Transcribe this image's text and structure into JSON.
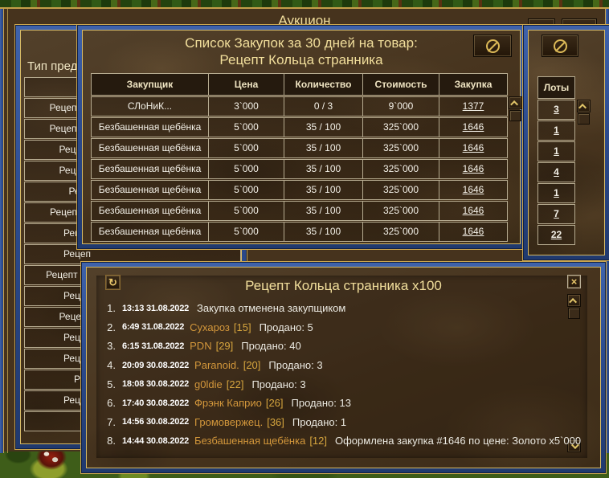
{
  "colors": {
    "frame_blue": "#2c4b8e",
    "frame_gold": "#d6ba66",
    "title_gold": "#f2df9c",
    "name_gold": "#d3973b",
    "cell_border": "#b6ab90"
  },
  "icons": {
    "cancel": "circle-slash",
    "refresh": "circular-arrow",
    "close": "x",
    "scroll_up": "chevron-up",
    "scroll_down": "chevron-down",
    "treasury": "gold-pile"
  },
  "auction_window": {
    "title": "Аукцион"
  },
  "sidebar": {
    "title": "Тип предм",
    "items": [
      "",
      "Рецепт П",
      "Рецепт П",
      "Рецепт",
      "Рецепт",
      "Реце",
      "Рецепт Д",
      "Рецеп",
      "Рецеп",
      "Рецепт Ку",
      "Рецеп",
      "Рецепт",
      "Рецеп",
      "Рецеп",
      "Рец",
      "Рецеп",
      ""
    ]
  },
  "purchase_window": {
    "title_line1": "Список Закупок за 30 дней на товар:",
    "title_line2": "Рецепт Кольца странника",
    "table": {
      "headers": [
        "Закупщик",
        "Цена",
        "Количество",
        "Стоимость",
        "Закупка"
      ],
      "rows": [
        {
          "buyer": "СЛоНиК...",
          "price": "3`000",
          "quantity": "0 / 3",
          "total": "9`000",
          "purchase_id": "1377"
        },
        {
          "buyer": "Безбашенная щебёнка",
          "price": "5`000",
          "quantity": "35 / 100",
          "total": "325`000",
          "purchase_id": "1646"
        },
        {
          "buyer": "Безбашенная щебёнка",
          "price": "5`000",
          "quantity": "35 / 100",
          "total": "325`000",
          "purchase_id": "1646"
        },
        {
          "buyer": "Безбашенная щебёнка",
          "price": "5`000",
          "quantity": "35 / 100",
          "total": "325`000",
          "purchase_id": "1646"
        },
        {
          "buyer": "Безбашенная щебёнка",
          "price": "5`000",
          "quantity": "35 / 100",
          "total": "325`000",
          "purchase_id": "1646"
        },
        {
          "buyer": "Безбашенная щебёнка",
          "price": "5`000",
          "quantity": "35 / 100",
          "total": "325`000",
          "purchase_id": "1646"
        },
        {
          "buyer": "Безбашенная щебёнка",
          "price": "5`000",
          "quantity": "35 / 100",
          "total": "325`000",
          "purchase_id": "1646"
        }
      ]
    }
  },
  "lots_panel": {
    "header": "Лоты",
    "values": [
      "3",
      "1",
      "1",
      "4",
      "1",
      "7",
      "22"
    ]
  },
  "log_window": {
    "title": "Рецепт Кольца странника x100",
    "entries": [
      {
        "num": "1.",
        "time": "13:13 31.08.2022",
        "name": "",
        "level": "",
        "text": "Закупка отменена закупщиком"
      },
      {
        "num": "2.",
        "time": "6:49 31.08.2022",
        "name": "Сухароз",
        "level": "[15]",
        "text": "Продано: 5"
      },
      {
        "num": "3.",
        "time": "6:15 31.08.2022",
        "name": "PDN",
        "level": "[29]",
        "text": "Продано: 40"
      },
      {
        "num": "4.",
        "time": "20:09 30.08.2022",
        "name": "Paranoid.",
        "level": "[20]",
        "text": "Продано: 3"
      },
      {
        "num": "5.",
        "time": "18:08 30.08.2022",
        "name": "g0ldie",
        "level": "[22]",
        "text": "Продано: 3"
      },
      {
        "num": "6.",
        "time": "17:40 30.08.2022",
        "name": "Фрэнк Каприо",
        "level": "[26]",
        "text": "Продано: 13"
      },
      {
        "num": "7.",
        "time": "14:56 30.08.2022",
        "name": "Громовержец.",
        "level": "[36]",
        "text": "Продано: 1"
      },
      {
        "num": "8.",
        "time": "14:44 30.08.2022",
        "name": "Безбашенная щебёнка",
        "level": "[12]",
        "text": "Оформлена закупка #1646 по цене: Золото x5`000"
      }
    ]
  }
}
